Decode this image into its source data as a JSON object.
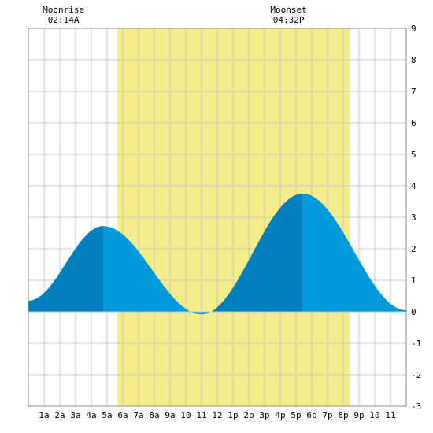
{
  "chart_data": {
    "type": "area",
    "title": "",
    "xlabel": "",
    "ylabel": "",
    "xlim": [
      0,
      24
    ],
    "ylim": [
      -3,
      9
    ],
    "grid": true,
    "x_tick_labels": [
      "1a",
      "2a",
      "3a",
      "4a",
      "5a",
      "6a",
      "7a",
      "8a",
      "9a",
      "10",
      "11",
      "12",
      "1p",
      "2p",
      "3p",
      "4p",
      "5p",
      "6p",
      "7p",
      "8p",
      "9p",
      "10",
      "11"
    ],
    "y_tick_labels": [
      "9",
      "8",
      "7",
      "6",
      "5",
      "4",
      "3",
      "2",
      "1",
      "0",
      "-1",
      "-2",
      "-3"
    ],
    "daylight": {
      "start_hour": 5.67,
      "end_hour": 20.42,
      "color": "#f4ec88"
    },
    "tide_color": "#009ada",
    "tide_rising_color": "#0080bc",
    "extremes": [
      {
        "hour": 0.0,
        "height": 0.35
      },
      {
        "hour": 4.75,
        "height": 2.72
      },
      {
        "hour": 11.0,
        "height": -0.08
      },
      {
        "hour": 17.42,
        "height": 3.75
      },
      {
        "hour": 24.0,
        "height": 0.05
      }
    ],
    "annotations": [
      {
        "title": "Moonrise",
        "time": "02:14A",
        "hour": 2.23
      },
      {
        "title": "Moonset",
        "time": "04:32P",
        "hour": 16.53
      }
    ]
  }
}
